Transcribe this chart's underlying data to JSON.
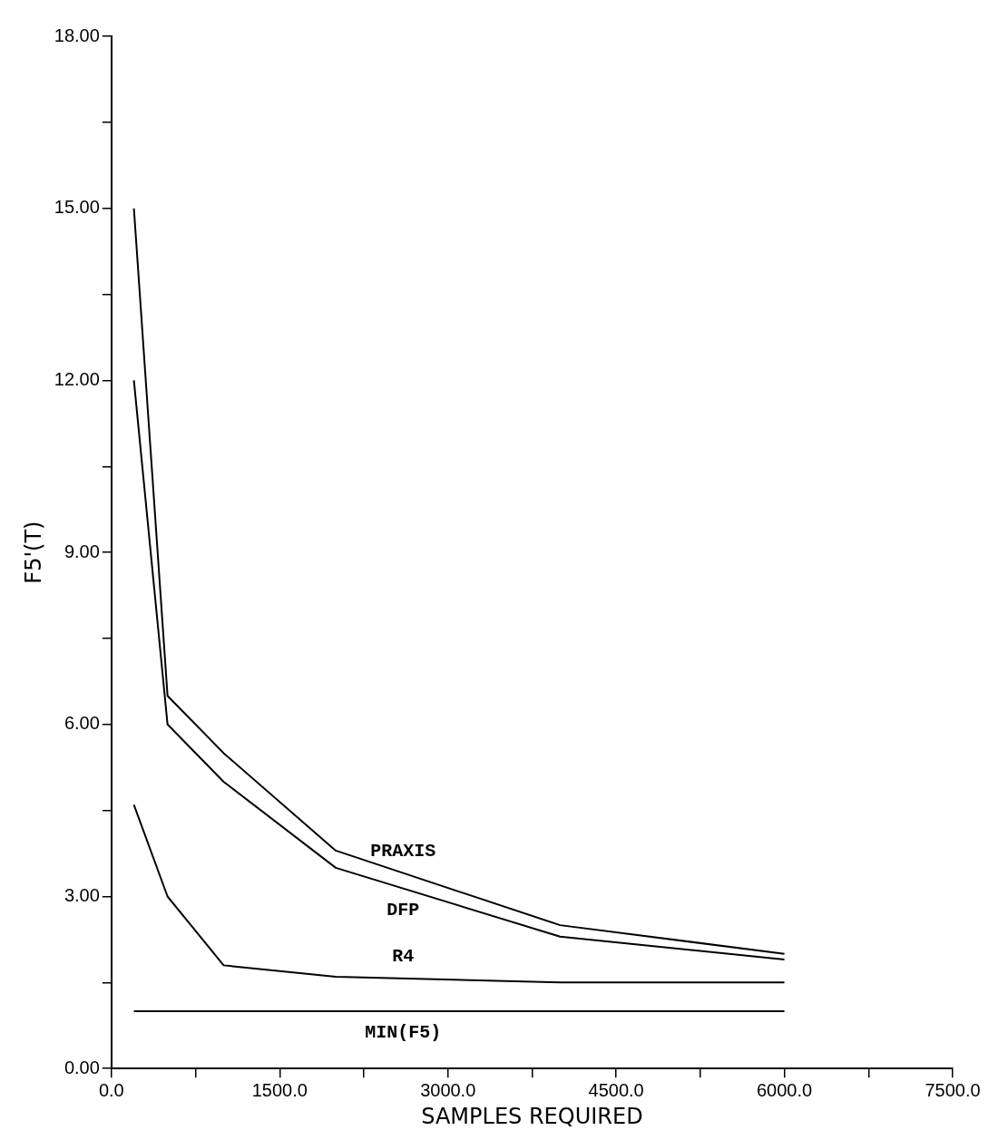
{
  "chart_data": {
    "type": "line",
    "xlabel": "SAMPLES REQUIRED",
    "ylabel": "F5'(T)",
    "xlim": [
      0,
      7500
    ],
    "ylim": [
      0,
      18
    ],
    "xticks": [
      {
        "value": 0,
        "label": "0.0"
      },
      {
        "value": 750,
        "label": null
      },
      {
        "value": 1500,
        "label": "1500.0"
      },
      {
        "value": 2250,
        "label": null
      },
      {
        "value": 3000,
        "label": "3000.0"
      },
      {
        "value": 3750,
        "label": null
      },
      {
        "value": 4500,
        "label": "4500.0"
      },
      {
        "value": 5250,
        "label": null
      },
      {
        "value": 6000,
        "label": "6000.0"
      },
      {
        "value": 6750,
        "label": null
      },
      {
        "value": 7500,
        "label": "7500.0"
      }
    ],
    "yticks": [
      {
        "value": 0,
        "label": "0.00"
      },
      {
        "value": 1.5,
        "label": null
      },
      {
        "value": 3,
        "label": "3.00"
      },
      {
        "value": 4.5,
        "label": null
      },
      {
        "value": 6,
        "label": "6.00"
      },
      {
        "value": 7.5,
        "label": null
      },
      {
        "value": 9,
        "label": "9.00"
      },
      {
        "value": 10.5,
        "label": null
      },
      {
        "value": 12,
        "label": "12.00"
      },
      {
        "value": 13.5,
        "label": null
      },
      {
        "value": 15,
        "label": "15.00"
      },
      {
        "value": 16.5,
        "label": null
      },
      {
        "value": 18,
        "label": "18.00"
      }
    ],
    "x": [
      200,
      500,
      1000,
      2000,
      4000,
      6000
    ],
    "series": [
      {
        "name": "PRAXIS",
        "color": "#000000",
        "values": [
          15.0,
          6.5,
          5.5,
          3.8,
          2.5,
          2.0
        ]
      },
      {
        "name": "DFP",
        "color": "#000000",
        "values": [
          12.0,
          6.0,
          5.0,
          3.5,
          2.3,
          1.9
        ]
      },
      {
        "name": "R4",
        "color": "#000000",
        "values": [
          4.6,
          3.0,
          1.8,
          1.6,
          1.5,
          1.5
        ]
      },
      {
        "name": "MIN(F5)",
        "color": "#000000",
        "values": [
          1.0,
          1.0,
          1.0,
          1.0,
          1.0,
          1.0
        ]
      }
    ],
    "grid": false,
    "legend": false,
    "marker": "none",
    "line_style": "solid"
  }
}
